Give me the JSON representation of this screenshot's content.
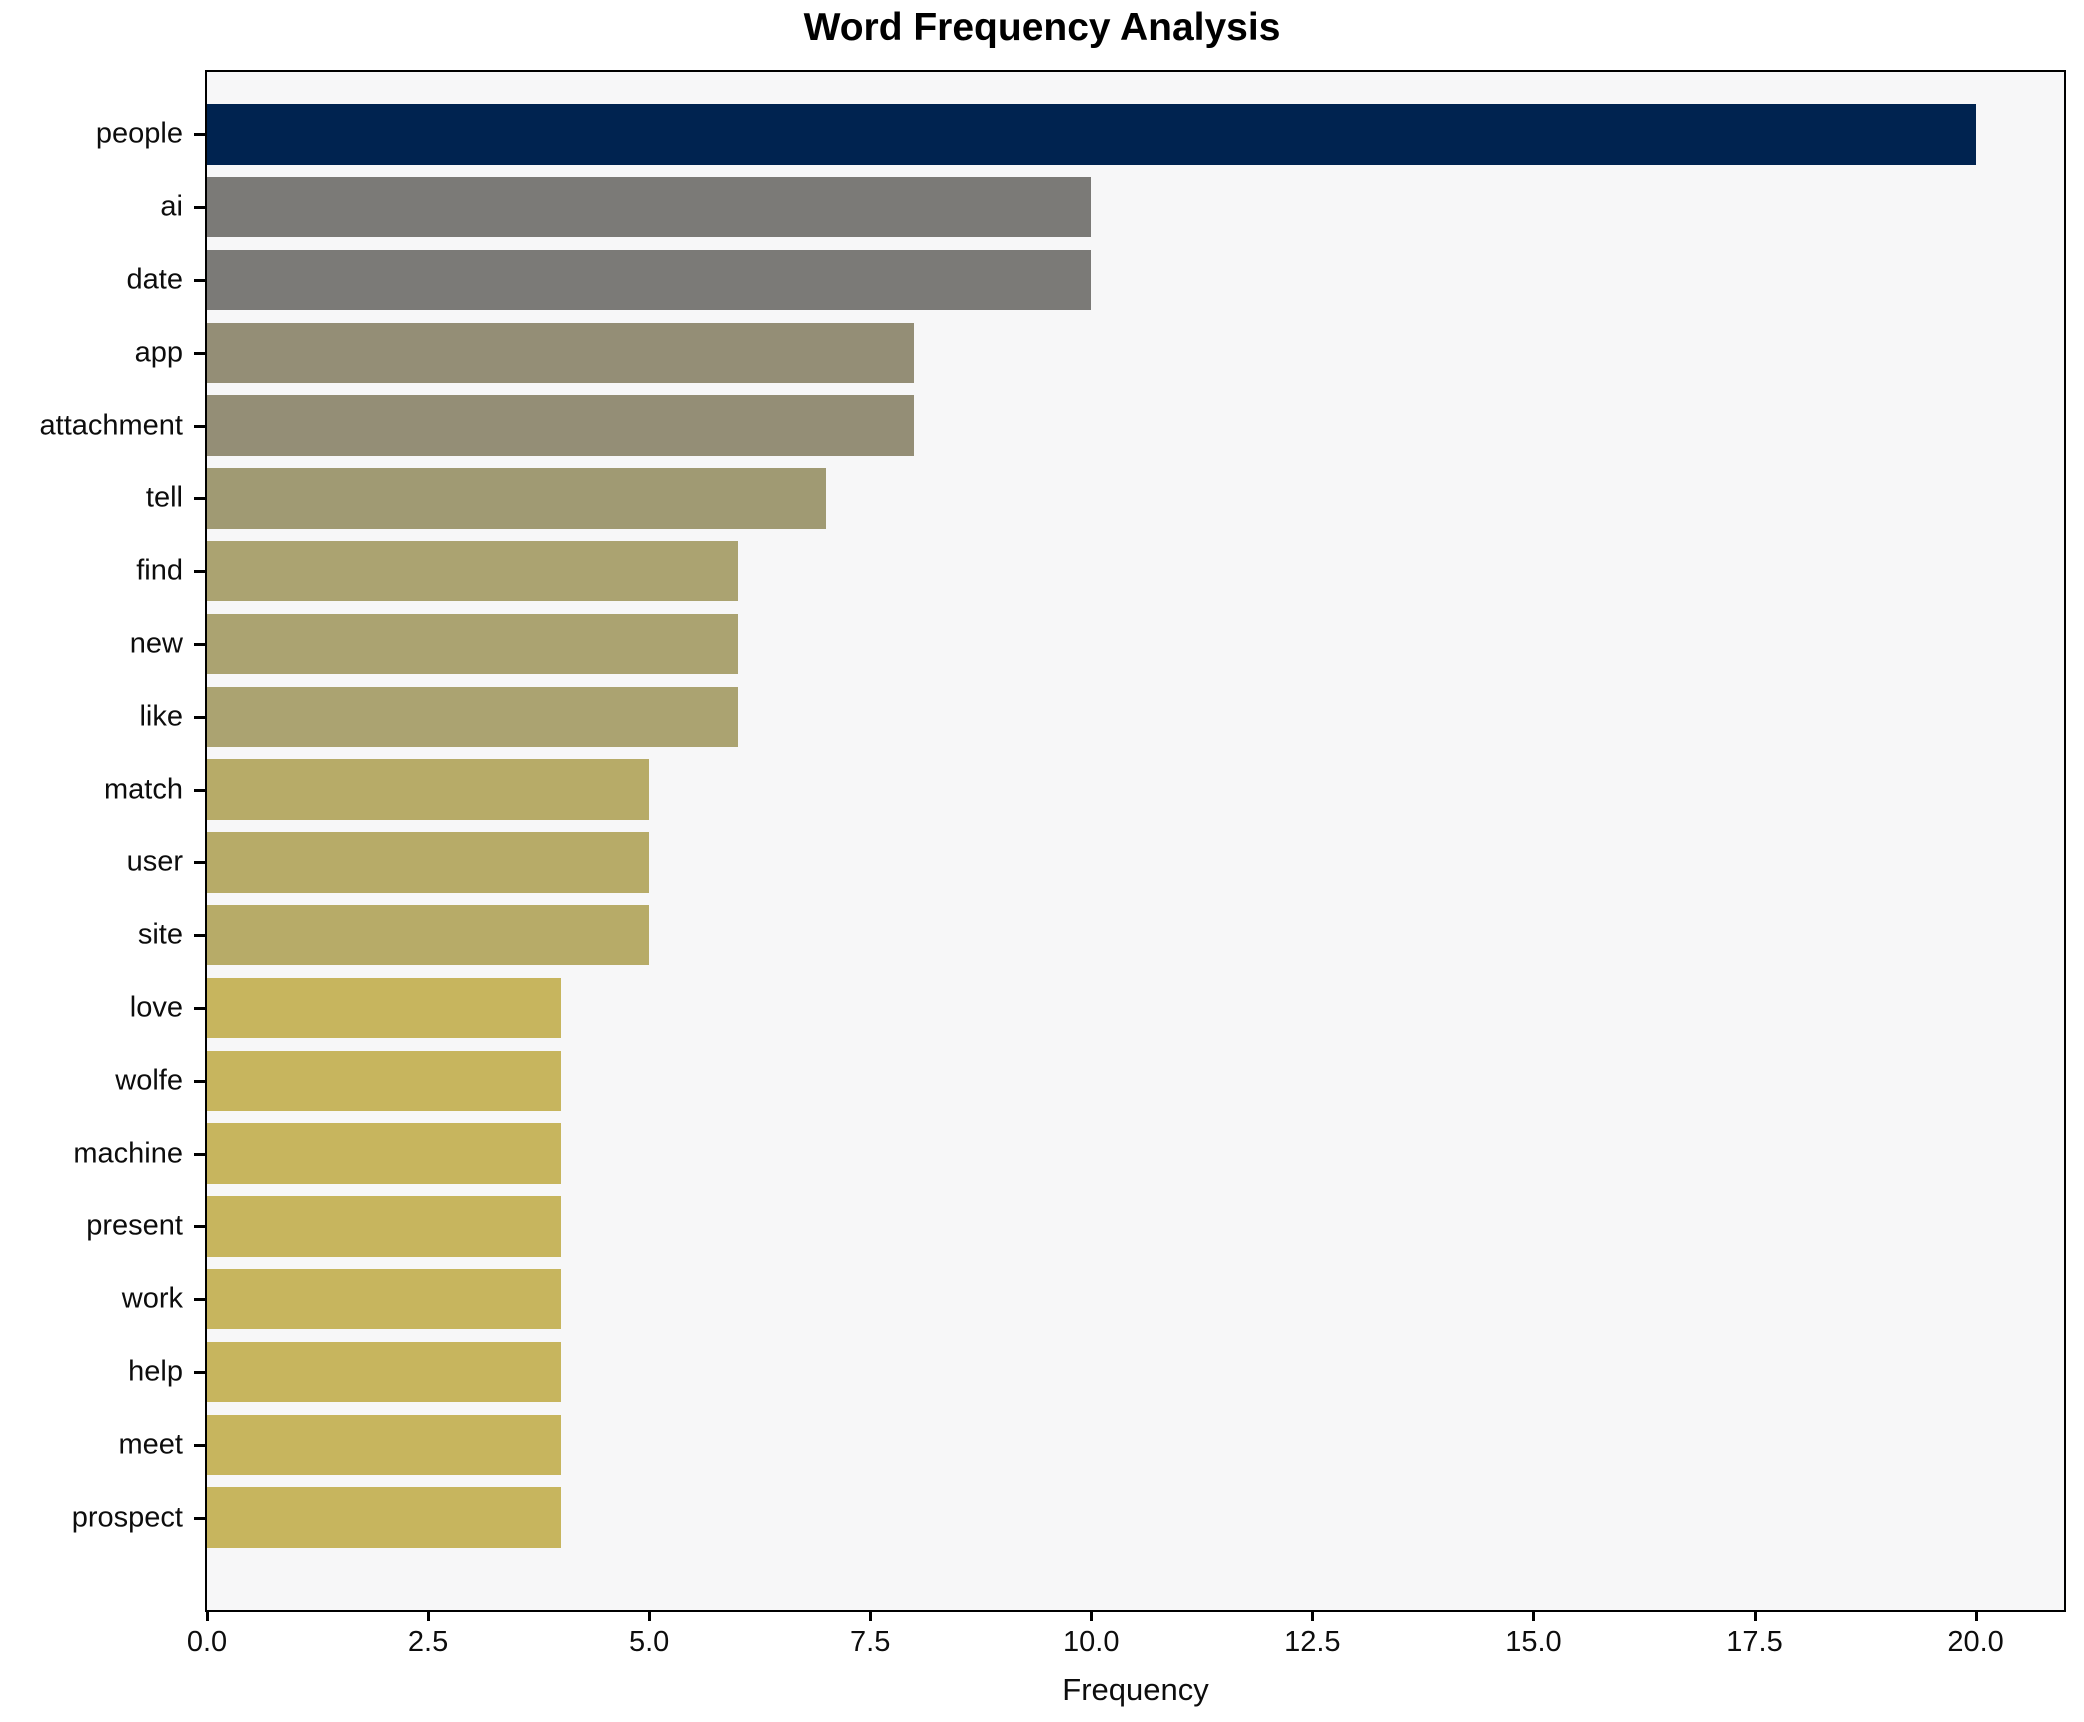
{
  "title": "Word Frequency Analysis",
  "colors": {
    "figure_background": "#ffffff",
    "plot_background": "#f7f7f8",
    "spine": "#000000",
    "text": "#0d0d0d"
  },
  "chart_data": {
    "type": "bar",
    "orientation": "horizontal",
    "title": "Word Frequency Analysis",
    "xlabel": "Frequency",
    "ylabel": "",
    "xlim": [
      0,
      21
    ],
    "grid": false,
    "legend": null,
    "categories": [
      "people",
      "ai",
      "date",
      "app",
      "attachment",
      "tell",
      "find",
      "new",
      "like",
      "match",
      "user",
      "site",
      "love",
      "wolfe",
      "machine",
      "present",
      "work",
      "help",
      "meet",
      "prospect"
    ],
    "values": [
      20,
      10,
      10,
      8,
      8,
      7,
      6,
      6,
      6,
      5,
      5,
      5,
      4,
      4,
      4,
      4,
      4,
      4,
      4,
      4
    ],
    "bar_colors": [
      "#002350",
      "#7b7a77",
      "#7b7a77",
      "#948e76",
      "#948e76",
      "#a09a73",
      "#aba371",
      "#aba371",
      "#aba371",
      "#b7ab68",
      "#b7ab68",
      "#b7ab68",
      "#c7b55e",
      "#c7b55e",
      "#c7b55e",
      "#c7b55e",
      "#c7b55e",
      "#c7b55e",
      "#c7b55e",
      "#c7b55e"
    ],
    "xticks": [
      {
        "value": 0,
        "label": "0.0"
      },
      {
        "value": 2.5,
        "label": "2.5"
      },
      {
        "value": 5,
        "label": "5.0"
      },
      {
        "value": 7.5,
        "label": "7.5"
      },
      {
        "value": 10,
        "label": "10.0"
      },
      {
        "value": 12.5,
        "label": "12.5"
      },
      {
        "value": 15,
        "label": "15.0"
      },
      {
        "value": 17.5,
        "label": "17.5"
      },
      {
        "value": 20,
        "label": "20.0"
      }
    ]
  }
}
